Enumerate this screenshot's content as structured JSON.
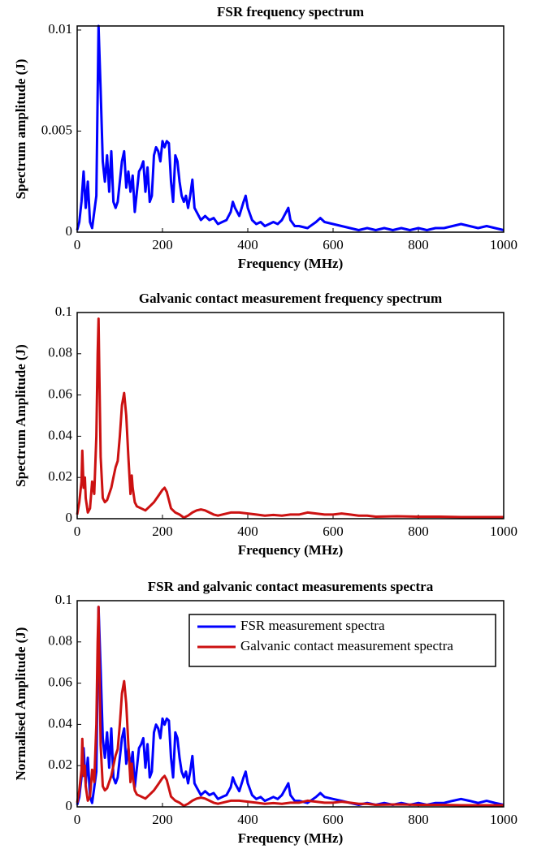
{
  "chart_data": [
    {
      "type": "line",
      "title": "FSR frequency spectrum",
      "xlabel": "Frequency (MHz)",
      "ylabel": "Spectrum amplitude (J)",
      "xlim": [
        0,
        1000
      ],
      "xticks": [
        0,
        200,
        400,
        600,
        800,
        1000
      ],
      "ylim": [
        0,
        0.0102
      ],
      "yticks": [
        0,
        0.005,
        0.01
      ],
      "series": [
        {
          "color": "#0000ff",
          "x": [
            0,
            5,
            10,
            15,
            20,
            25,
            30,
            35,
            40,
            45,
            50,
            55,
            60,
            65,
            70,
            75,
            80,
            85,
            90,
            95,
            100,
            105,
            110,
            115,
            120,
            125,
            130,
            135,
            140,
            145,
            150,
            155,
            160,
            165,
            170,
            175,
            180,
            185,
            190,
            195,
            200,
            205,
            210,
            215,
            220,
            225,
            230,
            235,
            240,
            245,
            250,
            255,
            260,
            265,
            270,
            275,
            280,
            290,
            300,
            310,
            320,
            330,
            340,
            350,
            360,
            365,
            370,
            380,
            390,
            395,
            400,
            410,
            420,
            430,
            440,
            450,
            460,
            470,
            480,
            490,
            495,
            500,
            510,
            520,
            540,
            560,
            570,
            580,
            600,
            620,
            640,
            660,
            680,
            700,
            720,
            740,
            760,
            780,
            800,
            820,
            840,
            860,
            880,
            900,
            920,
            940,
            960,
            980,
            1000
          ],
          "values": [
            0.0001,
            0.0005,
            0.0015,
            0.003,
            0.0012,
            0.0025,
            0.0005,
            0.0002,
            0.001,
            0.0018,
            0.0102,
            0.007,
            0.0035,
            0.0025,
            0.0038,
            0.002,
            0.004,
            0.0015,
            0.0012,
            0.0015,
            0.0025,
            0.0035,
            0.004,
            0.0022,
            0.003,
            0.002,
            0.0028,
            0.001,
            0.002,
            0.003,
            0.0032,
            0.0035,
            0.002,
            0.0032,
            0.0015,
            0.0018,
            0.0038,
            0.0042,
            0.004,
            0.0035,
            0.0045,
            0.0042,
            0.0045,
            0.0044,
            0.0025,
            0.0015,
            0.0038,
            0.0035,
            0.0025,
            0.0018,
            0.0015,
            0.0018,
            0.0012,
            0.0018,
            0.0026,
            0.0012,
            0.001,
            0.0006,
            0.0008,
            0.0006,
            0.0007,
            0.0004,
            0.0005,
            0.0006,
            0.001,
            0.0015,
            0.0012,
            0.0008,
            0.0015,
            0.0018,
            0.0012,
            0.0006,
            0.0004,
            0.0005,
            0.0003,
            0.0004,
            0.0005,
            0.0004,
            0.0006,
            0.001,
            0.0012,
            0.0006,
            0.0003,
            0.0003,
            0.0002,
            0.0005,
            0.0007,
            0.0005,
            0.0004,
            0.0003,
            0.0002,
            0.0001,
            0.0002,
            0.0001,
            0.0002,
            0.0001,
            0.0002,
            0.0001,
            0.0002,
            0.0001,
            0.0002,
            0.0002,
            0.0003,
            0.0004,
            0.0003,
            0.0002,
            0.0003,
            0.0002,
            0.0001
          ]
        }
      ]
    },
    {
      "type": "line",
      "title": "Galvanic contact measurement frequency spectrum",
      "xlabel": "Frequency (MHz)",
      "ylabel": "Spectrum Amplitude (J)",
      "xlim": [
        0,
        1000
      ],
      "xticks": [
        0,
        200,
        400,
        600,
        800,
        1000
      ],
      "ylim": [
        0,
        0.1
      ],
      "yticks": [
        0,
        0.02,
        0.04,
        0.06,
        0.08,
        0.1
      ],
      "series": [
        {
          "color": "#cc1111",
          "x": [
            0,
            5,
            10,
            12,
            15,
            18,
            20,
            25,
            30,
            35,
            40,
            45,
            48,
            50,
            52,
            55,
            60,
            65,
            70,
            75,
            80,
            85,
            90,
            95,
            100,
            105,
            110,
            115,
            120,
            125,
            128,
            130,
            135,
            140,
            150,
            160,
            170,
            180,
            190,
            200,
            205,
            210,
            215,
            220,
            230,
            240,
            250,
            260,
            270,
            280,
            290,
            300,
            310,
            320,
            330,
            340,
            360,
            380,
            400,
            420,
            440,
            460,
            480,
            500,
            520,
            540,
            560,
            580,
            600,
            620,
            640,
            660,
            680,
            700,
            750,
            800,
            850,
            900,
            950,
            1000
          ],
          "values": [
            0.002,
            0.008,
            0.018,
            0.033,
            0.015,
            0.02,
            0.01,
            0.003,
            0.005,
            0.018,
            0.012,
            0.04,
            0.08,
            0.097,
            0.07,
            0.03,
            0.01,
            0.008,
            0.009,
            0.012,
            0.015,
            0.02,
            0.025,
            0.028,
            0.04,
            0.055,
            0.061,
            0.05,
            0.03,
            0.012,
            0.021,
            0.015,
            0.008,
            0.006,
            0.005,
            0.004,
            0.006,
            0.008,
            0.011,
            0.014,
            0.015,
            0.013,
            0.009,
            0.005,
            0.003,
            0.002,
            0.0005,
            0.0015,
            0.003,
            0.004,
            0.0045,
            0.004,
            0.003,
            0.002,
            0.0015,
            0.002,
            0.003,
            0.003,
            0.0025,
            0.002,
            0.0015,
            0.0018,
            0.0015,
            0.002,
            0.002,
            0.003,
            0.0025,
            0.002,
            0.002,
            0.0025,
            0.002,
            0.0015,
            0.0015,
            0.001,
            0.0012,
            0.001,
            0.001,
            0.0008,
            0.0008,
            0.0008
          ]
        }
      ]
    },
    {
      "type": "line",
      "title": "FSR and galvanic contact measurements spectra",
      "xlabel": "Frequency (MHz)",
      "ylabel": "Normalised Amplitude (J)",
      "xlim": [
        0,
        1000
      ],
      "xticks": [
        0,
        200,
        400,
        600,
        800,
        1000
      ],
      "ylim": [
        0,
        0.1
      ],
      "yticks": [
        0,
        0.02,
        0.04,
        0.06,
        0.08,
        0.1
      ],
      "legend": "upper right",
      "series": [
        {
          "name": "FSR measurement spectra",
          "color": "#0000ff",
          "x": [
            0,
            5,
            10,
            15,
            20,
            25,
            30,
            35,
            40,
            45,
            50,
            55,
            60,
            65,
            70,
            75,
            80,
            85,
            90,
            95,
            100,
            105,
            110,
            115,
            120,
            125,
            130,
            135,
            140,
            145,
            150,
            155,
            160,
            165,
            170,
            175,
            180,
            185,
            190,
            195,
            200,
            205,
            210,
            215,
            220,
            225,
            230,
            235,
            240,
            245,
            250,
            255,
            260,
            265,
            270,
            275,
            280,
            290,
            300,
            310,
            320,
            330,
            340,
            350,
            360,
            365,
            370,
            380,
            390,
            395,
            400,
            410,
            420,
            430,
            440,
            450,
            460,
            470,
            480,
            490,
            495,
            500,
            510,
            520,
            540,
            560,
            570,
            580,
            600,
            620,
            640,
            660,
            680,
            700,
            720,
            740,
            760,
            780,
            800,
            820,
            840,
            860,
            880,
            900,
            920,
            940,
            960,
            980,
            1000
          ],
          "values": [
            0.001,
            0.0048,
            0.0143,
            0.0285,
            0.0114,
            0.0238,
            0.0048,
            0.0019,
            0.0095,
            0.0171,
            0.0969,
            0.0665,
            0.0333,
            0.0238,
            0.0361,
            0.019,
            0.038,
            0.0143,
            0.0114,
            0.0143,
            0.0238,
            0.0333,
            0.038,
            0.0209,
            0.0285,
            0.019,
            0.0266,
            0.0095,
            0.019,
            0.0285,
            0.0304,
            0.0333,
            0.019,
            0.0304,
            0.0143,
            0.0171,
            0.0361,
            0.0399,
            0.038,
            0.0333,
            0.0428,
            0.0399,
            0.0428,
            0.0418,
            0.0238,
            0.0143,
            0.0361,
            0.0333,
            0.0238,
            0.0171,
            0.0143,
            0.0171,
            0.0114,
            0.0171,
            0.0247,
            0.0114,
            0.0095,
            0.0057,
            0.0076,
            0.0057,
            0.0067,
            0.0038,
            0.0048,
            0.0057,
            0.0095,
            0.0143,
            0.0114,
            0.0076,
            0.0143,
            0.0171,
            0.0114,
            0.0057,
            0.0038,
            0.0048,
            0.0029,
            0.0038,
            0.0048,
            0.0038,
            0.0057,
            0.0095,
            0.0114,
            0.0057,
            0.0029,
            0.0029,
            0.0019,
            0.0048,
            0.0067,
            0.0048,
            0.0038,
            0.0029,
            0.0019,
            0.001,
            0.0019,
            0.001,
            0.0019,
            0.001,
            0.0019,
            0.001,
            0.0019,
            0.001,
            0.0019,
            0.0019,
            0.0029,
            0.0038,
            0.0029,
            0.0019,
            0.0029,
            0.0019,
            0.001
          ]
        },
        {
          "name": "Galvanic contact measurement spectra",
          "color": "#cc1111",
          "x": [
            0,
            5,
            10,
            12,
            15,
            18,
            20,
            25,
            30,
            35,
            40,
            45,
            48,
            50,
            52,
            55,
            60,
            65,
            70,
            75,
            80,
            85,
            90,
            95,
            100,
            105,
            110,
            115,
            120,
            125,
            128,
            130,
            135,
            140,
            150,
            160,
            170,
            180,
            190,
            200,
            205,
            210,
            215,
            220,
            230,
            240,
            250,
            260,
            270,
            280,
            290,
            300,
            310,
            320,
            330,
            340,
            360,
            380,
            400,
            420,
            440,
            460,
            480,
            500,
            520,
            540,
            560,
            580,
            600,
            620,
            640,
            660,
            680,
            700,
            750,
            800,
            850,
            900,
            950,
            1000
          ],
          "values": [
            0.002,
            0.008,
            0.018,
            0.033,
            0.015,
            0.02,
            0.01,
            0.003,
            0.005,
            0.018,
            0.012,
            0.04,
            0.08,
            0.097,
            0.07,
            0.03,
            0.01,
            0.008,
            0.009,
            0.012,
            0.015,
            0.02,
            0.025,
            0.028,
            0.04,
            0.055,
            0.061,
            0.05,
            0.03,
            0.012,
            0.021,
            0.015,
            0.008,
            0.006,
            0.005,
            0.004,
            0.006,
            0.008,
            0.011,
            0.014,
            0.015,
            0.013,
            0.009,
            0.005,
            0.003,
            0.002,
            0.0005,
            0.0015,
            0.003,
            0.004,
            0.0045,
            0.004,
            0.003,
            0.002,
            0.0015,
            0.002,
            0.003,
            0.003,
            0.0025,
            0.002,
            0.0015,
            0.0018,
            0.0015,
            0.002,
            0.002,
            0.003,
            0.0025,
            0.002,
            0.002,
            0.0025,
            0.002,
            0.0015,
            0.0015,
            0.001,
            0.0012,
            0.001,
            0.001,
            0.0008,
            0.0008,
            0.0008
          ]
        }
      ]
    }
  ]
}
